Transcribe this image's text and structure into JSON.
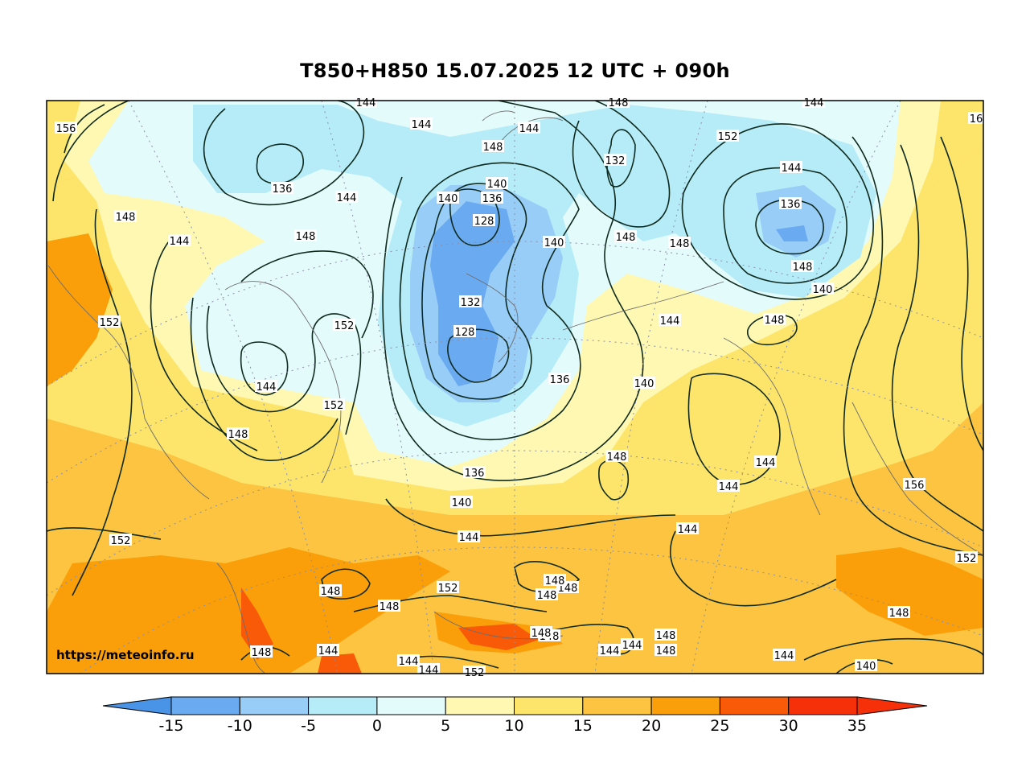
{
  "title": "T850+H850 15.07.2025 12 UTC + 090h",
  "credit": "https://meteoinfo.ru",
  "colorbar": {
    "ticks": [
      "-15",
      "-10",
      "-5",
      "0",
      "5",
      "10",
      "15",
      "20",
      "25",
      "30",
      "35"
    ],
    "colors": [
      "#4a94e8",
      "#6aaaf0",
      "#98cdf8",
      "#b6ecf8",
      "#e4fbfb",
      "#fef8b2",
      "#fde56c",
      "#fcc440",
      "#fa9e0a",
      "#f95a08",
      "#f63008"
    ],
    "under_color": "#4a94e8",
    "over_color": "#f63008"
  },
  "contour_labels": [
    "156",
    "144",
    "144",
    "148",
    "144",
    "144",
    "148",
    "16",
    "136",
    "144",
    "140",
    "136",
    "132",
    "152",
    "144",
    "140",
    "148",
    "128",
    "140",
    "148",
    "148",
    "148",
    "144",
    "136",
    "148",
    "132",
    "152",
    "140",
    "144",
    "152",
    "128",
    "148",
    "144",
    "136",
    "140",
    "152",
    "148",
    "148",
    "136",
    "144",
    "144",
    "140",
    "144",
    "156",
    "152",
    "144",
    "152",
    "148",
    "148",
    "152",
    "148",
    "148",
    "148",
    "148",
    "148",
    "148",
    "144",
    "144",
    "144",
    "144",
    "144",
    "148",
    "148",
    "144",
    "140",
    "152",
    "148"
  ]
}
